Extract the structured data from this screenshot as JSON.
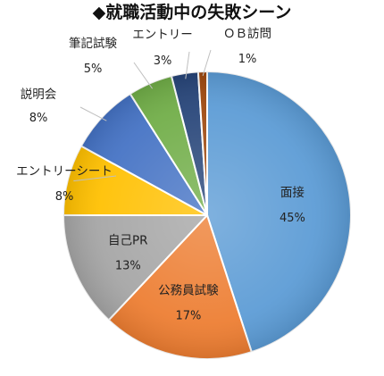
{
  "chart_data": {
    "type": "pie",
    "title": "◆就職活動中の失敗シーン",
    "start_angle_deg": 0,
    "direction": "clockwise",
    "slices": [
      {
        "label": "面接",
        "value": 45,
        "value_label": "45%",
        "color": "#5B9BD5",
        "label_position": "inside"
      },
      {
        "label": "公務員試験",
        "value": 17,
        "value_label": "17%",
        "color": "#ED7D31",
        "label_position": "inside"
      },
      {
        "label": "自己PR",
        "value": 13,
        "value_label": "13%",
        "color": "#A5A5A5",
        "label_position": "inside"
      },
      {
        "label": "エントリーシート",
        "value": 8,
        "value_label": "8%",
        "color": "#FFC000",
        "label_position": "outside"
      },
      {
        "label": "説明会",
        "value": 8,
        "value_label": "8%",
        "color": "#4472C4",
        "label_position": "outside"
      },
      {
        "label": "筆記試験",
        "value": 5,
        "value_label": "5%",
        "color": "#70AD47",
        "label_position": "outside"
      },
      {
        "label": "エントリー",
        "value": 3,
        "value_label": "3%",
        "color": "#264478",
        "label_position": "outside"
      },
      {
        "label": "ＯＢ訪問",
        "value": 1,
        "value_label": "1%",
        "color": "#9E480E",
        "label_position": "outside"
      }
    ],
    "legend": "none"
  }
}
